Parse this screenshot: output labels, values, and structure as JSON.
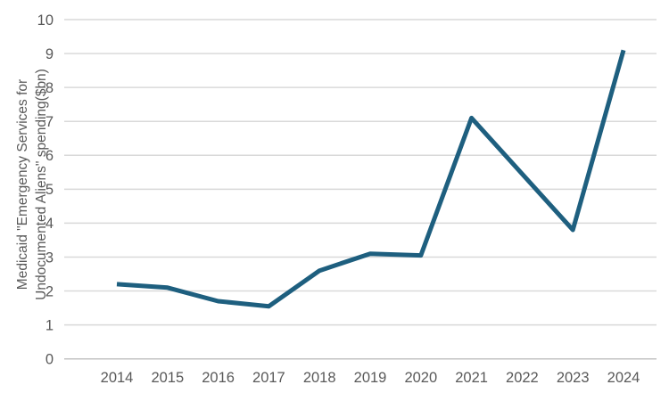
{
  "chart_data": {
    "type": "line",
    "title": "",
    "xlabel": "",
    "ylabel": "Medicaid \"Emergency Services for Undocumented Aliens\" spending($bn)",
    "ylabel_lines": [
      "Medicaid \"Emergency Services for",
      "Undocumented Aliens\" spending($bn)"
    ],
    "categories": [
      "2014",
      "2015",
      "2016",
      "2017",
      "2018",
      "2019",
      "2020",
      "2021",
      "2022",
      "2023",
      "2024"
    ],
    "values": [
      2.2,
      2.1,
      1.7,
      1.55,
      2.6,
      3.1,
      3.05,
      7.1,
      null,
      3.8,
      9.1
    ],
    "ylim": [
      0,
      10
    ],
    "yticks": [
      0,
      1,
      2,
      3,
      4,
      5,
      6,
      7,
      8,
      9,
      10
    ],
    "grid": "horizontal gridlines only, no vertical axis line",
    "legend": "none",
    "colors": {
      "line": "#1E5F7F",
      "gridline": "#D9D9D9",
      "zero_line": "#C3C3C3",
      "text": "#595959",
      "background": "#FFFFFF"
    }
  }
}
